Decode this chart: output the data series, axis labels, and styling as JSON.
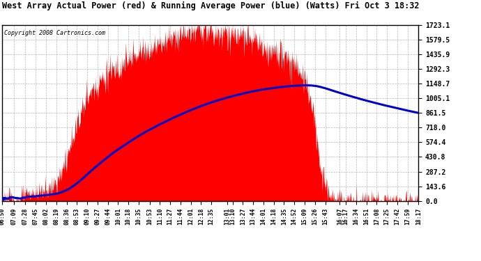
{
  "title": "West Array Actual Power (red) & Running Average Power (blue) (Watts) Fri Oct 3 18:32",
  "copyright": "Copyright 2008 Cartronics.com",
  "bg_color": "#ffffff",
  "plot_bg_color": "#ffffff",
  "grid_color": "#999999",
  "fill_color": "#ff0000",
  "line_color": "#0000cc",
  "ymax": 1723.1,
  "ymin": 0.0,
  "yticks": [
    0.0,
    143.6,
    287.2,
    430.8,
    574.4,
    718.0,
    861.5,
    1005.1,
    1148.7,
    1292.3,
    1435.9,
    1579.5,
    1723.1
  ],
  "xtick_labels": [
    "06:50",
    "07:09",
    "07:28",
    "07:45",
    "08:02",
    "08:19",
    "08:36",
    "08:53",
    "09:10",
    "09:27",
    "09:44",
    "10:01",
    "10:18",
    "10:35",
    "10:53",
    "11:10",
    "11:27",
    "11:44",
    "12:01",
    "12:18",
    "12:35",
    "13:01",
    "13:10",
    "13:27",
    "13:44",
    "14:01",
    "14:18",
    "14:35",
    "14:52",
    "15:09",
    "15:26",
    "15:43",
    "16:07",
    "16:17",
    "16:34",
    "16:51",
    "17:08",
    "17:25",
    "17:42",
    "17:59",
    "18:17"
  ]
}
